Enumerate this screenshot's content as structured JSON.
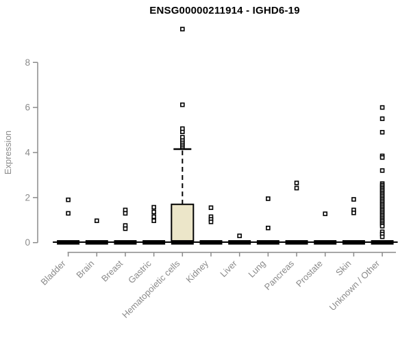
{
  "title": "ENSG00000211914 - IGHD6-19",
  "chart_data": {
    "type": "boxplot",
    "title": "ENSG00000211914 - IGHD6-19",
    "ylabel": "Expression",
    "xlabel": "",
    "ylim": [
      0,
      8
    ],
    "yticks": [
      0,
      2,
      4,
      6,
      8
    ],
    "grid": false,
    "legend": "none",
    "axis_color": "#8a8a8a",
    "point_shape": "open-square",
    "box_fill_color": "#ece6c9",
    "box_stroke_color": "#000000",
    "categories": [
      "Bladder",
      "Brain",
      "Breast",
      "Gastric",
      "Hematopoietic cells",
      "Kidney",
      "Liver",
      "Lung",
      "Pancreas",
      "Prostate",
      "Skin",
      "Unknown / Other"
    ],
    "series": [
      {
        "category": "Bladder",
        "box": {
          "q1": 0,
          "median": 0,
          "q3": 0,
          "whisker_low": 0,
          "whisker_high": 0
        },
        "outliers": [
          1.9,
          1.3
        ]
      },
      {
        "category": "Brain",
        "box": {
          "q1": 0,
          "median": 0,
          "q3": 0,
          "whisker_low": 0,
          "whisker_high": 0
        },
        "outliers": [
          0.97
        ]
      },
      {
        "category": "Breast",
        "box": {
          "q1": 0,
          "median": 0,
          "q3": 0,
          "whisker_low": 0,
          "whisker_high": 0
        },
        "outliers": [
          1.45,
          1.3,
          0.76,
          0.62
        ]
      },
      {
        "category": "Gastric",
        "box": {
          "q1": 0,
          "median": 0,
          "q3": 0,
          "whisker_low": 0,
          "whisker_high": 0
        },
        "outliers": [
          1.57,
          1.36,
          1.15,
          0.97
        ]
      },
      {
        "category": "Hematopoietic cells",
        "box": {
          "q1": 0,
          "median": 0.05,
          "q3": 1.7,
          "whisker_low": 0,
          "whisker_high": 4.15
        },
        "outliers": [
          4.25,
          4.33,
          4.41,
          4.49,
          4.58,
          4.68,
          4.92,
          5.06,
          6.12,
          9.48
        ]
      },
      {
        "category": "Kidney",
        "box": {
          "q1": 0,
          "median": 0,
          "q3": 0,
          "whisker_low": 0,
          "whisker_high": 0
        },
        "outliers": [
          1.55,
          1.15,
          1.03,
          0.92
        ]
      },
      {
        "category": "Liver",
        "box": {
          "q1": 0,
          "median": 0,
          "q3": 0,
          "whisker_low": 0,
          "whisker_high": 0
        },
        "outliers": [
          0.3
        ]
      },
      {
        "category": "Lung",
        "box": {
          "q1": 0,
          "median": 0,
          "q3": 0,
          "whisker_low": 0,
          "whisker_high": 0
        },
        "outliers": [
          1.95,
          0.65
        ]
      },
      {
        "category": "Pancreas",
        "box": {
          "q1": 0,
          "median": 0,
          "q3": 0,
          "whisker_low": 0,
          "whisker_high": 0
        },
        "outliers": [
          2.65,
          2.42
        ]
      },
      {
        "category": "Prostate",
        "box": {
          "q1": 0,
          "median": 0,
          "q3": 0,
          "whisker_low": 0,
          "whisker_high": 0
        },
        "outliers": [
          1.28
        ]
      },
      {
        "category": "Skin",
        "box": {
          "q1": 0,
          "median": 0,
          "q3": 0,
          "whisker_low": 0,
          "whisker_high": 0
        },
        "outliers": [
          1.92,
          1.45,
          1.32
        ]
      },
      {
        "category": "Unknown / Other",
        "box": {
          "q1": 0,
          "median": 0,
          "q3": 0,
          "whisker_low": 0,
          "whisker_high": 0
        },
        "outliers": [
          6.0,
          5.5,
          4.9,
          3.85,
          3.78,
          3.2,
          2.62,
          2.55,
          2.48,
          2.41,
          2.34,
          2.27,
          2.2,
          2.13,
          2.06,
          1.99,
          1.92,
          1.85,
          1.78,
          1.71,
          1.64,
          1.57,
          1.5,
          1.43,
          1.36,
          1.29,
          1.22,
          1.15,
          1.08,
          1.01,
          0.94,
          0.87,
          0.8,
          0.73,
          0.48,
          0.38,
          0.26
        ]
      }
    ]
  }
}
